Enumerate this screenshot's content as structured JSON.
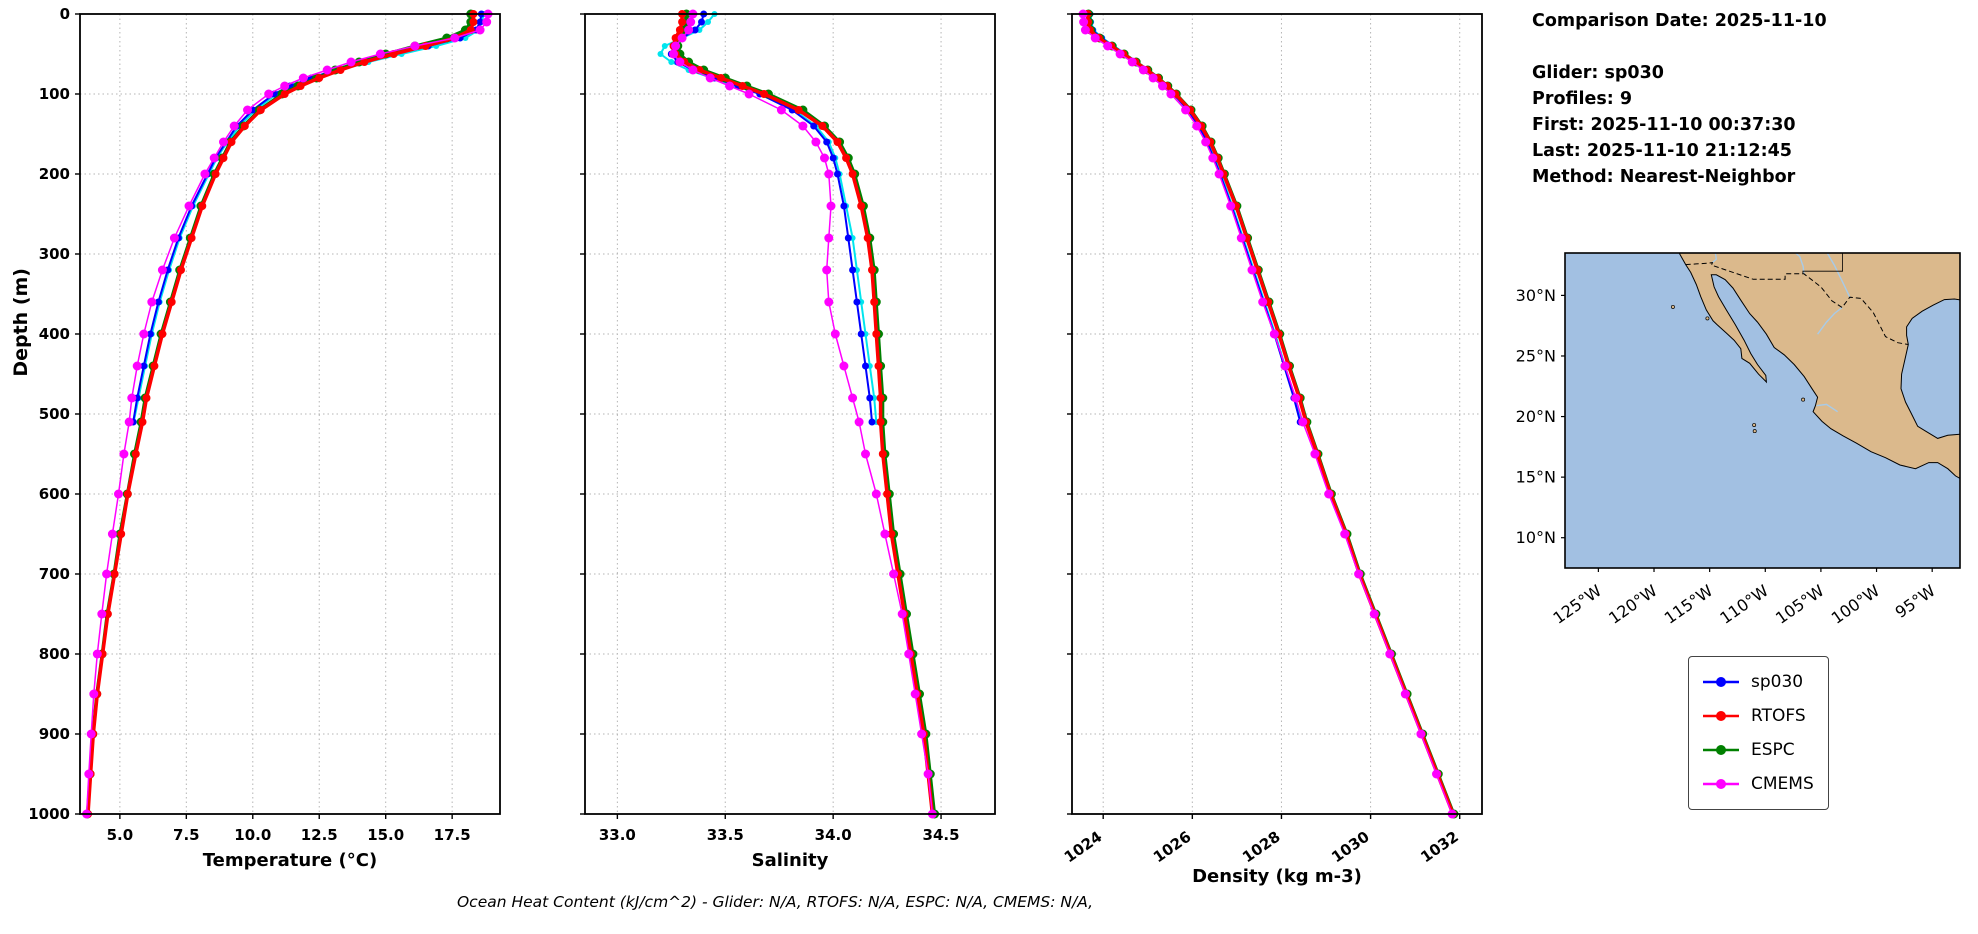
{
  "info": {
    "comparison_date": "Comparison Date: 2025-11-10",
    "glider": "Glider: sp030",
    "profiles": "Profiles: 9",
    "first": "First: 2025-11-10 00:37:30",
    "last": "Last: 2025-11-10 21:12:45",
    "method": "Method: Nearest-Neighbor"
  },
  "footer": {
    "ohc_text": "Ocean Heat Content (kJ/cm^2) - Glider: N/A,  RTOFS: N/A,  ESPC: N/A,  CMEMS: N/A,"
  },
  "legend": {
    "items": [
      {
        "label": "sp030",
        "color": "#0000FF"
      },
      {
        "label": "RTOFS",
        "color": "#FF0000"
      },
      {
        "label": "ESPC",
        "color": "#008000"
      },
      {
        "label": "CMEMS",
        "color": "#FF00FF"
      }
    ]
  },
  "map": {
    "ocean_color": "#a2c0e2",
    "land_color": "#dbb98c",
    "lat_ticks": [
      {
        "label": "30°N",
        "value": 30
      },
      {
        "label": "25°N",
        "value": 25
      },
      {
        "label": "20°N",
        "value": 20
      },
      {
        "label": "15°N",
        "value": 15
      },
      {
        "label": "10°N",
        "value": 10
      }
    ],
    "lon_ticks": [
      {
        "label": "125°W",
        "value": -125
      },
      {
        "label": "120°W",
        "value": -120
      },
      {
        "label": "115°W",
        "value": -115
      },
      {
        "label": "110°W",
        "value": -110
      },
      {
        "label": "105°W",
        "value": -105
      },
      {
        "label": "100°W",
        "value": -100
      },
      {
        "label": "95°W",
        "value": -95
      }
    ]
  },
  "chart_data": {
    "type": "line",
    "ylabel": "Depth (m)",
    "ylim": [
      0,
      1000
    ],
    "yticks": [
      0,
      100,
      200,
      300,
      400,
      500,
      600,
      700,
      800,
      900,
      1000
    ],
    "grid": "dotted",
    "depths": [
      0,
      10,
      20,
      30,
      40,
      50,
      60,
      70,
      80,
      90,
      100,
      120,
      140,
      160,
      180,
      200,
      240,
      280,
      320,
      360,
      400,
      440,
      480,
      510,
      550,
      600,
      650,
      700,
      750,
      800,
      850,
      900,
      950,
      1000
    ],
    "series_styles": [
      {
        "key": "glider_raw",
        "label": "glider raw",
        "color": "#00E5EE",
        "line_width": 2,
        "marker_radius": 3
      },
      {
        "key": "sp030",
        "label": "sp030",
        "color": "#0000FF",
        "line_width": 2,
        "marker_radius": 3.5
      },
      {
        "key": "ESPC",
        "label": "ESPC",
        "color": "#008000",
        "line_width": 3,
        "marker_radius": 4.5
      },
      {
        "key": "RTOFS",
        "label": "RTOFS",
        "color": "#FF0000",
        "line_width": 3.5,
        "marker_radius": 4
      },
      {
        "key": "CMEMS",
        "label": "CMEMS",
        "color": "#FF00FF",
        "line_width": 1.5,
        "marker_radius": 4.5
      }
    ],
    "panels": [
      {
        "key": "temperature",
        "xlabel": "Temperature (°C)",
        "xlim": [
          3.5,
          19.3
        ],
        "xticks": [
          5.0,
          7.5,
          10.0,
          12.5,
          15.0,
          17.5
        ],
        "xtick_labels": [
          "5.0",
          "7.5",
          "10.0",
          "12.5",
          "15.0",
          "17.5"
        ],
        "rotate_xticks": false,
        "series": {
          "glider_raw": [
            18.7,
            18.6,
            18.5,
            18.0,
            16.9,
            15.6,
            14.35,
            13.3,
            12.4,
            11.55,
            10.9,
            10.1,
            9.5,
            9.05,
            8.65,
            8.35,
            7.75,
            7.25,
            6.85,
            6.5,
            6.2,
            5.95,
            5.7,
            5.52,
            null,
            null,
            null,
            null,
            null,
            null,
            null,
            null,
            null,
            null
          ],
          "sp030": [
            18.6,
            18.55,
            18.4,
            17.8,
            16.6,
            15.3,
            14.1,
            13.1,
            12.2,
            11.4,
            10.8,
            10.0,
            9.4,
            9.0,
            8.6,
            8.3,
            7.7,
            7.2,
            6.8,
            6.45,
            6.15,
            5.9,
            5.65,
            5.5,
            null,
            null,
            null,
            null,
            null,
            null,
            null,
            null,
            null,
            null
          ],
          "RTOFS": [
            18.3,
            18.3,
            18.2,
            17.6,
            16.5,
            15.3,
            14.2,
            13.3,
            12.5,
            11.8,
            11.2,
            10.3,
            9.7,
            9.2,
            8.9,
            8.6,
            8.1,
            7.7,
            7.3,
            6.95,
            6.6,
            6.3,
            6.0,
            5.85,
            5.6,
            5.3,
            5.05,
            4.8,
            4.55,
            4.35,
            4.15,
            4.0,
            3.9,
            3.8
          ],
          "ESPC": [
            18.2,
            18.2,
            18.0,
            17.3,
            16.1,
            15.0,
            14.0,
            13.1,
            12.4,
            11.7,
            11.1,
            10.25,
            9.65,
            9.15,
            8.85,
            8.55,
            8.05,
            7.65,
            7.25,
            6.9,
            6.55,
            6.25,
            5.95,
            5.8,
            5.55,
            5.28,
            5.0,
            4.78,
            4.52,
            4.33,
            4.13,
            3.98,
            3.88,
            3.78
          ],
          "CMEMS": [
            18.85,
            18.8,
            18.55,
            17.6,
            16.1,
            14.8,
            13.7,
            12.8,
            11.9,
            11.2,
            10.6,
            9.8,
            9.3,
            8.9,
            8.55,
            8.2,
            7.6,
            7.05,
            6.6,
            6.2,
            5.9,
            5.65,
            5.45,
            5.35,
            5.15,
            4.95,
            4.72,
            4.5,
            4.32,
            4.15,
            4.02,
            3.92,
            3.83,
            3.75
          ]
        }
      },
      {
        "key": "salinity",
        "xlabel": "Salinity",
        "xlim": [
          32.85,
          34.75
        ],
        "xticks": [
          33.0,
          33.5,
          34.0,
          34.5
        ],
        "xtick_labels": [
          "33.0",
          "33.5",
          "34.0",
          "34.5"
        ],
        "rotate_xticks": false,
        "series": {
          "glider_raw": [
            33.45,
            33.42,
            33.38,
            33.3,
            33.22,
            33.2,
            33.25,
            33.33,
            33.44,
            33.55,
            33.66,
            33.82,
            33.92,
            33.98,
            34.01,
            34.03,
            34.06,
            34.09,
            34.11,
            34.13,
            34.15,
            34.17,
            34.19,
            34.2,
            null,
            null,
            null,
            null,
            null,
            null,
            null,
            null,
            null,
            null
          ],
          "sp030": [
            33.4,
            33.39,
            33.36,
            33.3,
            33.26,
            33.25,
            33.28,
            33.35,
            33.45,
            33.56,
            33.66,
            33.81,
            33.91,
            33.97,
            34.0,
            34.02,
            34.05,
            34.07,
            34.09,
            34.11,
            34.13,
            34.15,
            34.17,
            34.18,
            null,
            null,
            null,
            null,
            null,
            null,
            null,
            null,
            null,
            null
          ],
          "RTOFS": [
            33.3,
            33.3,
            33.29,
            33.27,
            33.26,
            33.27,
            33.31,
            33.38,
            33.48,
            33.58,
            33.68,
            33.84,
            33.95,
            34.02,
            34.06,
            34.09,
            34.13,
            34.16,
            34.18,
            34.19,
            34.2,
            34.21,
            34.22,
            34.22,
            34.23,
            34.25,
            34.27,
            34.3,
            34.33,
            34.36,
            34.39,
            34.42,
            34.44,
            34.46
          ],
          "ESPC": [
            33.32,
            33.32,
            33.31,
            33.29,
            33.28,
            33.29,
            33.33,
            33.4,
            33.5,
            33.6,
            33.7,
            33.86,
            33.96,
            34.03,
            34.07,
            34.1,
            34.14,
            34.17,
            34.19,
            34.2,
            34.21,
            34.22,
            34.23,
            34.23,
            34.24,
            34.26,
            34.28,
            34.31,
            34.34,
            34.37,
            34.4,
            34.43,
            34.45,
            34.47
          ],
          "CMEMS": [
            33.35,
            33.34,
            33.33,
            33.3,
            33.27,
            33.26,
            33.29,
            33.35,
            33.43,
            33.52,
            33.61,
            33.76,
            33.86,
            33.92,
            33.96,
            33.98,
            33.99,
            33.98,
            33.97,
            33.98,
            34.01,
            34.05,
            34.09,
            34.12,
            34.15,
            34.2,
            34.24,
            34.28,
            34.32,
            34.35,
            34.38,
            34.41,
            34.44,
            34.46
          ]
        }
      },
      {
        "key": "density",
        "xlabel": "Density (kg m-3)",
        "xlim": [
          1023.3,
          1032.5
        ],
        "xticks": [
          1024,
          1026,
          1028,
          1030,
          1032
        ],
        "xtick_labels": [
          "1024",
          "1026",
          "1028",
          "1030",
          "1032"
        ],
        "rotate_xticks": true,
        "series": {
          "glider_raw": [
            1023.72,
            1023.73,
            1023.78,
            1023.98,
            1024.24,
            1024.5,
            1024.75,
            1025.0,
            1025.22,
            1025.42,
            1025.6,
            1025.92,
            1026.16,
            1026.35,
            1026.5,
            1026.64,
            1026.9,
            1027.14,
            1027.38,
            1027.62,
            1027.86,
            1028.08,
            1028.3,
            1028.44,
            null,
            null,
            null,
            null,
            null,
            null,
            null,
            null,
            null,
            null
          ],
          "sp030": [
            1023.7,
            1023.71,
            1023.76,
            1023.96,
            1024.22,
            1024.48,
            1024.73,
            1024.98,
            1025.2,
            1025.4,
            1025.58,
            1025.9,
            1026.14,
            1026.33,
            1026.48,
            1026.62,
            1026.88,
            1027.12,
            1027.36,
            1027.6,
            1027.84,
            1028.06,
            1028.28,
            1028.42,
            null,
            null,
            null,
            null,
            null,
            null,
            null,
            null,
            null,
            null
          ],
          "RTOFS": [
            1023.65,
            1023.66,
            1023.7,
            1023.9,
            1024.18,
            1024.45,
            1024.72,
            1024.98,
            1025.22,
            1025.43,
            1025.62,
            1025.95,
            1026.2,
            1026.4,
            1026.56,
            1026.7,
            1026.98,
            1027.22,
            1027.46,
            1027.7,
            1027.94,
            1028.16,
            1028.4,
            1028.55,
            1028.8,
            1029.1,
            1029.45,
            1029.75,
            1030.1,
            1030.45,
            1030.8,
            1031.15,
            1031.5,
            1031.85
          ],
          "ESPC": [
            1023.67,
            1023.68,
            1023.72,
            1023.92,
            1024.2,
            1024.47,
            1024.74,
            1025.0,
            1025.24,
            1025.45,
            1025.64,
            1025.97,
            1026.22,
            1026.42,
            1026.58,
            1026.72,
            1027.0,
            1027.24,
            1027.48,
            1027.72,
            1027.96,
            1028.18,
            1028.42,
            1028.57,
            1028.82,
            1029.12,
            1029.47,
            1029.77,
            1030.12,
            1030.47,
            1030.82,
            1031.17,
            1031.52,
            1031.87
          ],
          "CMEMS": [
            1023.55,
            1023.56,
            1023.6,
            1023.82,
            1024.1,
            1024.38,
            1024.65,
            1024.9,
            1025.12,
            1025.33,
            1025.52,
            1025.85,
            1026.1,
            1026.3,
            1026.46,
            1026.6,
            1026.86,
            1027.1,
            1027.34,
            1027.58,
            1027.84,
            1028.08,
            1028.32,
            1028.48,
            1028.75,
            1029.06,
            1029.42,
            1029.73,
            1030.08,
            1030.43,
            1030.78,
            1031.13,
            1031.48,
            1031.83
          ]
        }
      }
    ]
  }
}
